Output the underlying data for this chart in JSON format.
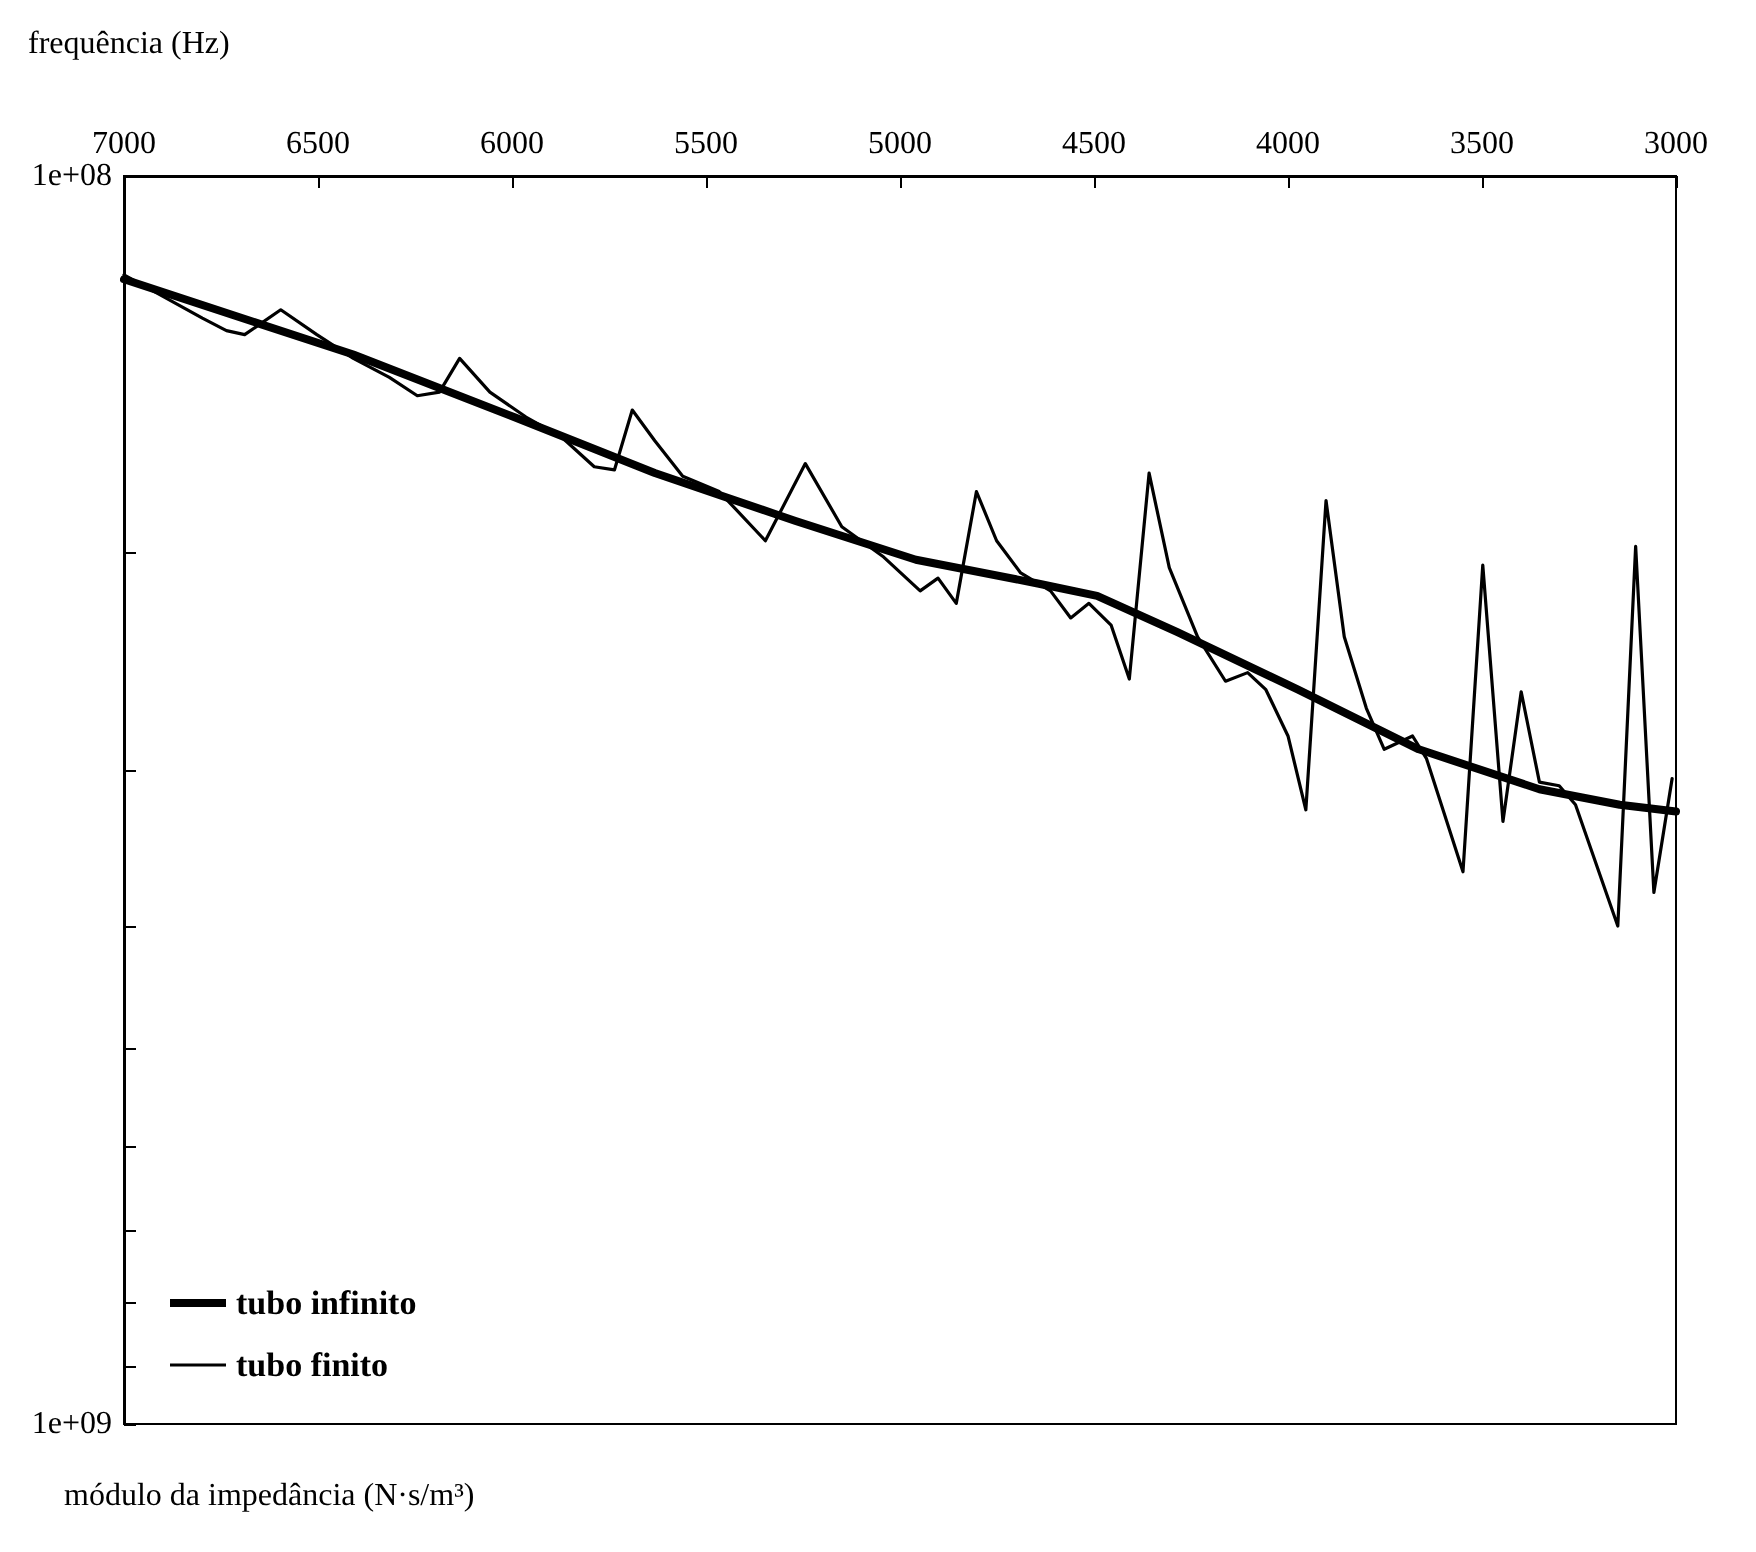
{
  "chart_data": {
    "type": "line",
    "xlabel": "frequência (Hz)",
    "ylabel": "módulo da impedância (N·s/m³)",
    "log": "y",
    "grid": false,
    "legend": "bottom left",
    "marker": "none",
    "line_style": "solid",
    "xlim": [
      7000,
      3000
    ],
    "xticks": [
      3000,
      3500,
      4000,
      4500,
      5000,
      5500,
      6000,
      6500,
      7000
    ],
    "ylim": [
      1000000000,
      100000000
    ],
    "yticks": [
      {
        "value": 100000000,
        "label": "1e+08"
      },
      {
        "value": 200000000,
        "label": null
      },
      {
        "value": 300000000,
        "label": null
      },
      {
        "value": 400000000,
        "label": null
      },
      {
        "value": 500000000,
        "label": null
      },
      {
        "value": 600000000,
        "label": null
      },
      {
        "value": 700000000,
        "label": null
      },
      {
        "value": 800000000,
        "label": null
      },
      {
        "value": 900000000,
        "label": null
      },
      {
        "value": 1000000000,
        "label": "1e+09"
      }
    ],
    "series": [
      {
        "name": "tubo infinito",
        "color": "#000000",
        "x": [
          7000,
          6409,
          5995,
          5632,
          5269,
          4959,
          4648,
          4492,
          4285,
          3974,
          3663,
          3352,
          3145,
          3000
        ],
        "values": [
          121000000,
          139000000,
          156000000,
          173000000,
          189000000,
          203000000,
          212000000,
          217000000,
          232000000,
          258000000,
          288000000,
          310000000,
          319000000,
          323000000
        ]
      },
      {
        "name": "tubo finito",
        "color": "#000000",
        "x": [
          7000,
          6798,
          6736,
          6689,
          6596,
          6503,
          6409,
          6316,
          6244,
          6187,
          6135,
          6057,
          5964,
          5871,
          5788,
          5736,
          5690,
          5632,
          5560,
          5466,
          5347,
          5244,
          5150,
          5042,
          4948,
          4902,
          4855,
          4803,
          4751,
          4689,
          4612,
          4560,
          4513,
          4456,
          4409,
          4358,
          4306,
          4233,
          4161,
          4104,
          4057,
          4000,
          3954,
          3902,
          3855,
          3798,
          3752,
          3679,
          3643,
          3549,
          3498,
          3446,
          3399,
          3352,
          3301,
          3259,
          3150,
          3104,
          3057,
          3010
        ],
        "values": [
          120000000,
          130000000,
          133000000,
          134000000,
          128000000,
          134000000,
          140000000,
          145000000,
          150000000,
          149000000,
          140000000,
          149000000,
          156000000,
          162000000,
          171000000,
          172000000,
          154000000,
          163000000,
          174000000,
          179000000,
          196000000,
          170000000,
          191000000,
          202000000,
          215000000,
          210000000,
          220000000,
          179000000,
          196000000,
          208000000,
          215000000,
          226000000,
          220000000,
          229000000,
          253000000,
          173000000,
          206000000,
          234000000,
          254000000,
          250000000,
          258000000,
          281000000,
          322000000,
          182000000,
          234000000,
          267000000,
          288000000,
          281000000,
          293000000,
          361000000,
          205000000,
          329000000,
          259000000,
          306000000,
          308000000,
          319000000,
          399000000,
          198000000,
          375000000,
          304000000
        ]
      }
    ]
  }
}
